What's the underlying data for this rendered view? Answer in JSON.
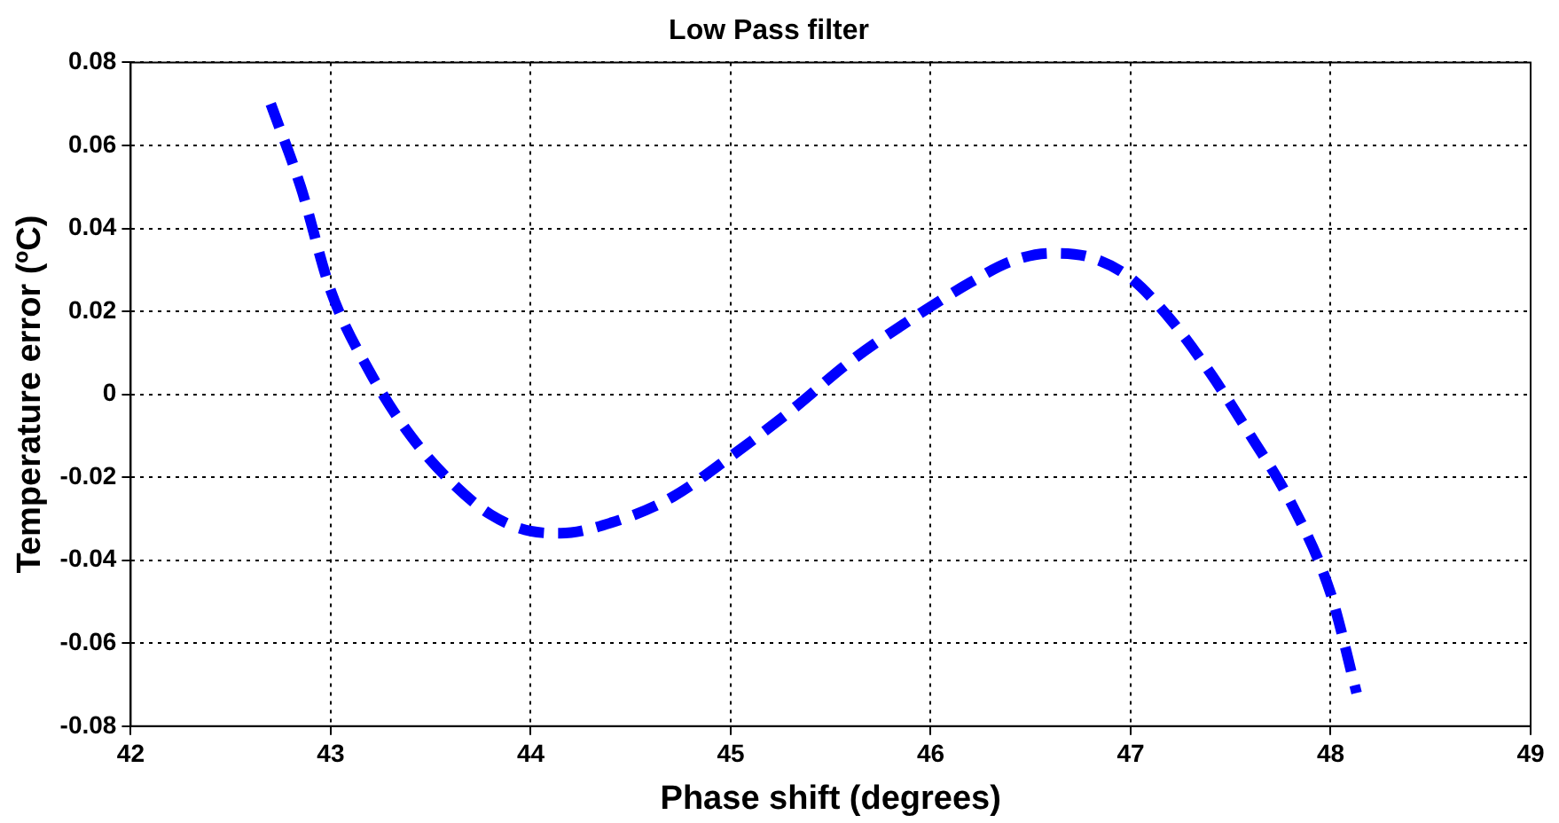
{
  "chart_data": {
    "type": "line",
    "title": "Low Pass filter",
    "xlabel": "Phase shift (degrees)",
    "ylabel": "Temperature error (ºC)",
    "x": [
      42.7,
      42.85,
      43.0,
      43.2,
      43.4,
      43.6,
      43.8,
      44.0,
      44.15,
      44.4,
      44.7,
      45.0,
      45.3,
      45.6,
      45.9,
      46.2,
      46.4,
      46.6,
      46.8,
      47.0,
      47.2,
      47.4,
      47.6,
      47.8,
      48.0,
      48.13
    ],
    "series": [
      {
        "color": "#0000ff",
        "values": [
          0.07,
          0.05,
          0.025,
          0.005,
          -0.01,
          -0.021,
          -0.029,
          -0.033,
          -0.0335,
          -0.031,
          -0.025,
          -0.015,
          -0.004,
          0.008,
          0.018,
          0.027,
          0.032,
          0.034,
          0.033,
          0.028,
          0.018,
          0.005,
          -0.01,
          -0.026,
          -0.048,
          -0.072
        ]
      }
    ],
    "xlim": [
      42,
      49
    ],
    "xticks": [
      42,
      43,
      44,
      45,
      46,
      47,
      48,
      49
    ],
    "ylim": [
      -0.08,
      0.08
    ],
    "yticks": [
      -0.08,
      -0.06,
      -0.04,
      -0.02,
      0,
      0.02,
      0.04,
      0.06,
      0.08
    ],
    "grid": true,
    "legend": false,
    "marker": "none",
    "line_style": "dashed"
  }
}
